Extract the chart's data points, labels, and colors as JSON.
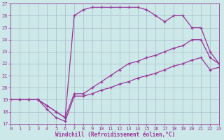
{
  "xlabel": "Windchill (Refroidissement éolien,°C)",
  "xlim": [
    0,
    23
  ],
  "ylim": [
    17,
    27
  ],
  "xticks": [
    0,
    1,
    2,
    3,
    4,
    5,
    6,
    7,
    8,
    9,
    10,
    11,
    12,
    13,
    14,
    15,
    16,
    17,
    18,
    19,
    20,
    21,
    22,
    23
  ],
  "yticks": [
    17,
    18,
    19,
    20,
    21,
    22,
    23,
    24,
    25,
    26,
    27
  ],
  "bg_color": "#cce8e8",
  "grid_color": "#aabbcc",
  "line_color": "#993399",
  "line1": {
    "x": [
      0,
      1,
      2,
      3,
      4,
      5,
      6,
      7,
      8,
      9,
      10,
      11,
      12,
      13,
      14,
      15,
      16,
      17,
      18,
      19,
      20,
      21,
      22,
      23
    ],
    "y": [
      19,
      19,
      19,
      19,
      18.5,
      18.0,
      17.5,
      26.0,
      26.5,
      26.7,
      26.7,
      26.7,
      26.7,
      26.7,
      26.7,
      26.5,
      26.0,
      25.5,
      26.0,
      26.0,
      25.0,
      25.0,
      23.0,
      22.0
    ]
  },
  "line2": {
    "x": [
      0,
      1,
      2,
      3,
      4,
      5,
      6,
      7,
      8,
      9,
      10,
      11,
      12,
      13,
      14,
      15,
      16,
      17,
      18,
      19,
      20,
      21,
      22,
      23
    ],
    "y": [
      19,
      19,
      19,
      19,
      18.5,
      18.0,
      17.5,
      19.5,
      19.5,
      20.0,
      20.5,
      21.0,
      21.5,
      22.0,
      22.2,
      22.5,
      22.7,
      23.0,
      23.3,
      23.5,
      24.0,
      24.0,
      22.5,
      22.0
    ]
  },
  "line3": {
    "x": [
      0,
      1,
      2,
      3,
      4,
      5,
      6,
      7,
      8,
      9,
      10,
      11,
      12,
      13,
      14,
      15,
      16,
      17,
      18,
      19,
      20,
      21,
      22,
      23
    ],
    "y": [
      19,
      19,
      19,
      19,
      18.2,
      17.5,
      17.2,
      19.3,
      19.3,
      19.5,
      19.8,
      20.0,
      20.3,
      20.5,
      20.8,
      21.0,
      21.2,
      21.5,
      21.8,
      22.0,
      22.3,
      22.5,
      21.5,
      21.7
    ]
  }
}
